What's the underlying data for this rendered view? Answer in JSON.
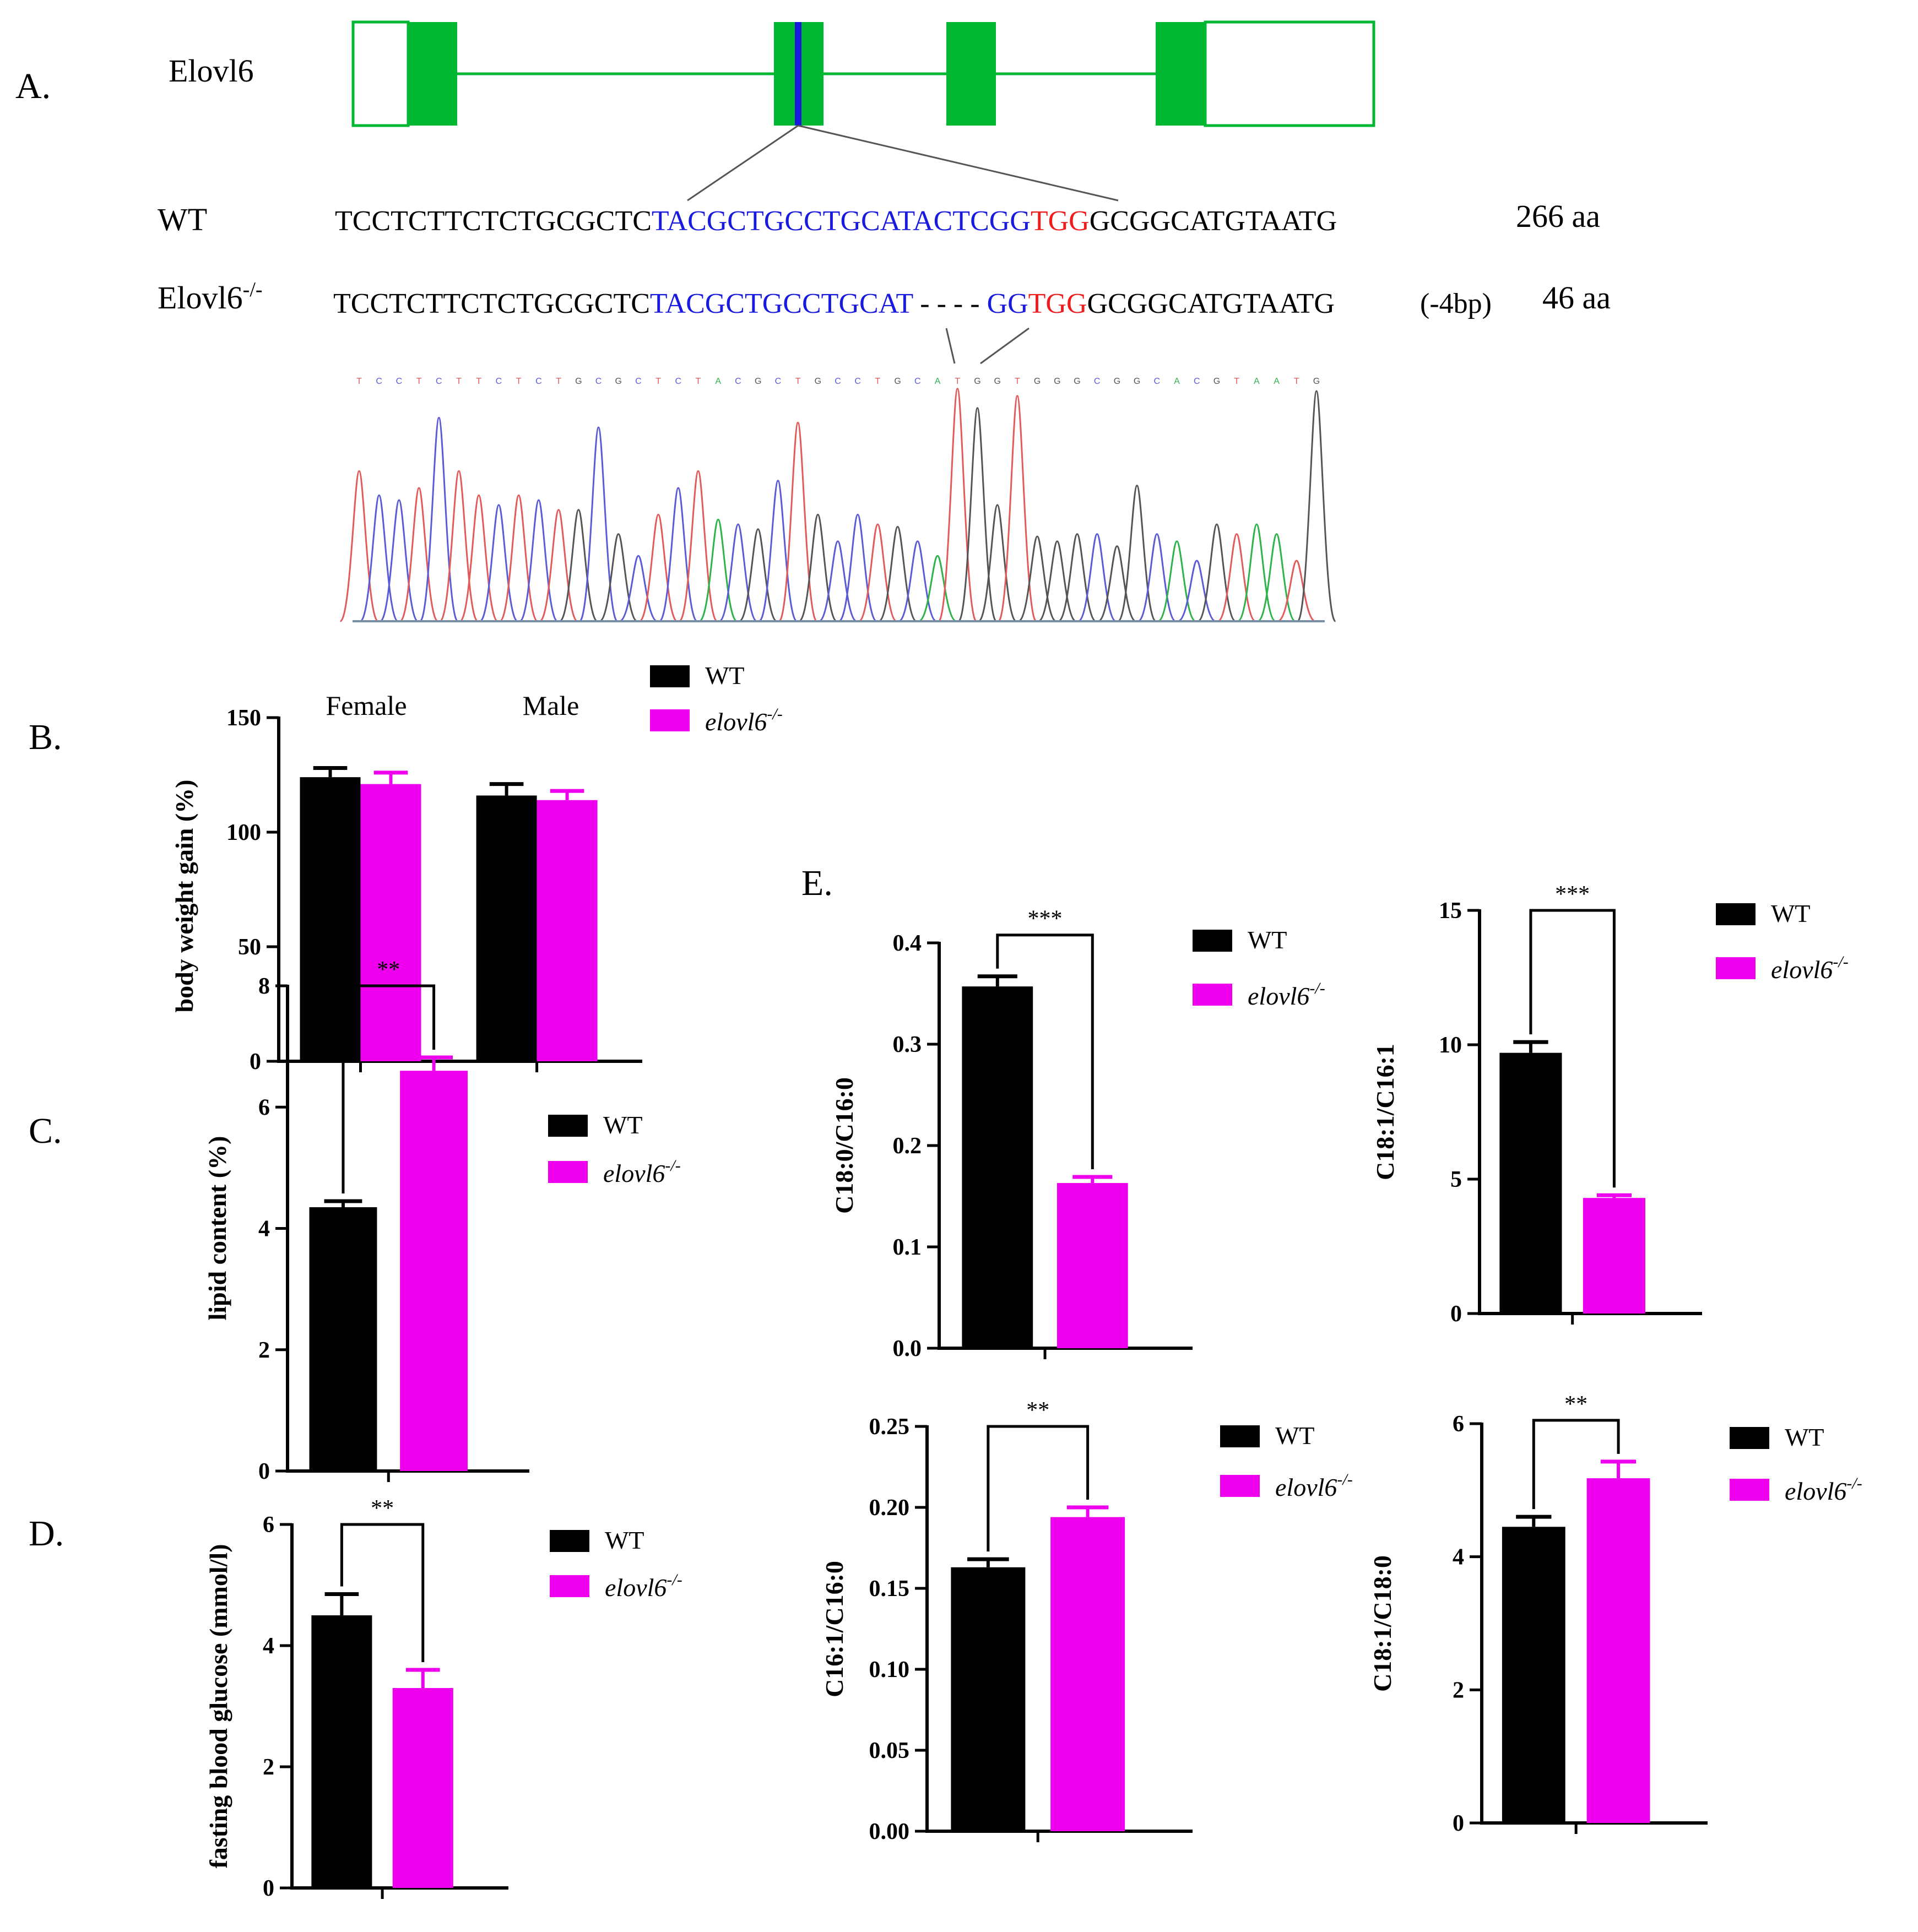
{
  "colors": {
    "wt": "#000000",
    "ko": "#ee00ee",
    "exon": "#00b732",
    "guide": "#1a1adf",
    "pam": "#ee1c1c",
    "trace_a": "#2db34a",
    "trace_c": "#5b5bd6",
    "trace_g": "#555555",
    "trace_t": "#e25b5b"
  },
  "panel_a": {
    "label": "A.",
    "gene": "Elovl6",
    "wt_label": "WT",
    "ko_label": "Elovl6",
    "ko_sup": "-/-",
    "wt_seq": {
      "pre": "TCCTCTTCTCTGCGCTC",
      "guide": "TACGCTGCCTGCATACTCGG",
      "pam": "TGG",
      "post": "GCGGCATGTAATG"
    },
    "ko_seq": {
      "pre": "TCCTCTTCTCTGCGCTC",
      "guide1": "TACGCTGCCTGCAT",
      "gap": " - - - - ",
      "guide2": "GG",
      "pam": "TGG",
      "post": "GCGGCATGTAATG"
    },
    "deletion": "(-4bp)",
    "wt_len": "266 aa",
    "ko_len": "46 aa",
    "trace_bases": "TCCTCTTCTCTGCGCTCTACGCTGCCTGCATGGTGGGCGGCACGTAATG"
  },
  "legend": {
    "wt": "WT",
    "ko_name": "elovl6",
    "ko_sup": "-/-"
  },
  "chart_data": [
    {
      "id": "B",
      "label": "B.",
      "type": "bar",
      "ylabel": "body weight gain (%)",
      "ylim": [
        0,
        150
      ],
      "yticks": [
        0,
        50,
        100,
        150
      ],
      "categories": [
        "Female",
        "Male"
      ],
      "series": [
        {
          "name": "WT",
          "values": [
            124,
            116
          ],
          "errors": [
            4,
            5
          ]
        },
        {
          "name": "elovl6-/-",
          "values": [
            121,
            114
          ],
          "errors": [
            5,
            4
          ]
        }
      ],
      "significance": ""
    },
    {
      "id": "C",
      "label": "C.",
      "type": "bar",
      "ylabel": "lipid content (%)",
      "ylim": [
        0,
        8
      ],
      "yticks": [
        0,
        2,
        4,
        6,
        8
      ],
      "series": [
        {
          "name": "WT",
          "values": [
            4.35
          ],
          "errors": [
            0.1
          ]
        },
        {
          "name": "elovl6-/-",
          "values": [
            6.6
          ],
          "errors": [
            0.22
          ]
        }
      ],
      "significance": "**"
    },
    {
      "id": "D",
      "label": "D.",
      "type": "bar",
      "ylabel": "fasting blood glucose (mmol/l)",
      "ylim": [
        0,
        6
      ],
      "yticks": [
        0,
        2,
        4,
        6
      ],
      "series": [
        {
          "name": "WT",
          "values": [
            4.5
          ],
          "errors": [
            0.35
          ]
        },
        {
          "name": "elovl6-/-",
          "values": [
            3.3
          ],
          "errors": [
            0.3
          ]
        }
      ],
      "significance": "**"
    },
    {
      "id": "E1",
      "label": "E.",
      "type": "bar",
      "ylabel": "C18:0/C16:0",
      "ylim": [
        0,
        0.4
      ],
      "yticks": [
        "0.0",
        "0.1",
        "0.2",
        "0.3",
        "0.4"
      ],
      "series": [
        {
          "name": "WT",
          "values": [
            0.357
          ],
          "errors": [
            0.01
          ]
        },
        {
          "name": "elovl6-/-",
          "values": [
            0.163
          ],
          "errors": [
            0.006
          ]
        }
      ],
      "significance": "***"
    },
    {
      "id": "E2",
      "label": "",
      "type": "bar",
      "ylabel": "C18:1/C16:1",
      "ylim": [
        0,
        15
      ],
      "yticks": [
        0,
        5,
        10,
        15
      ],
      "series": [
        {
          "name": "WT",
          "values": [
            9.7
          ],
          "errors": [
            0.4
          ]
        },
        {
          "name": "elovl6-/-",
          "values": [
            4.3
          ],
          "errors": [
            0.1
          ]
        }
      ],
      "significance": "***"
    },
    {
      "id": "E3",
      "label": "",
      "type": "bar",
      "ylabel": "C16:1/C16:0",
      "ylim": [
        0,
        0.25
      ],
      "yticks": [
        "0.00",
        "0.05",
        "0.10",
        "0.15",
        "0.20",
        "0.25"
      ],
      "series": [
        {
          "name": "WT",
          "values": [
            0.163
          ],
          "errors": [
            0.005
          ]
        },
        {
          "name": "elovl6-/-",
          "values": [
            0.194
          ],
          "errors": [
            0.006
          ]
        }
      ],
      "significance": "**"
    },
    {
      "id": "E4",
      "label": "",
      "type": "bar",
      "ylabel": "C18:1/C18:0",
      "ylim": [
        0,
        6
      ],
      "yticks": [
        0,
        2,
        4,
        6
      ],
      "series": [
        {
          "name": "WT",
          "values": [
            4.45
          ],
          "errors": [
            0.15
          ]
        },
        {
          "name": "elovl6-/-",
          "values": [
            5.18
          ],
          "errors": [
            0.25
          ]
        }
      ],
      "significance": "**"
    }
  ]
}
